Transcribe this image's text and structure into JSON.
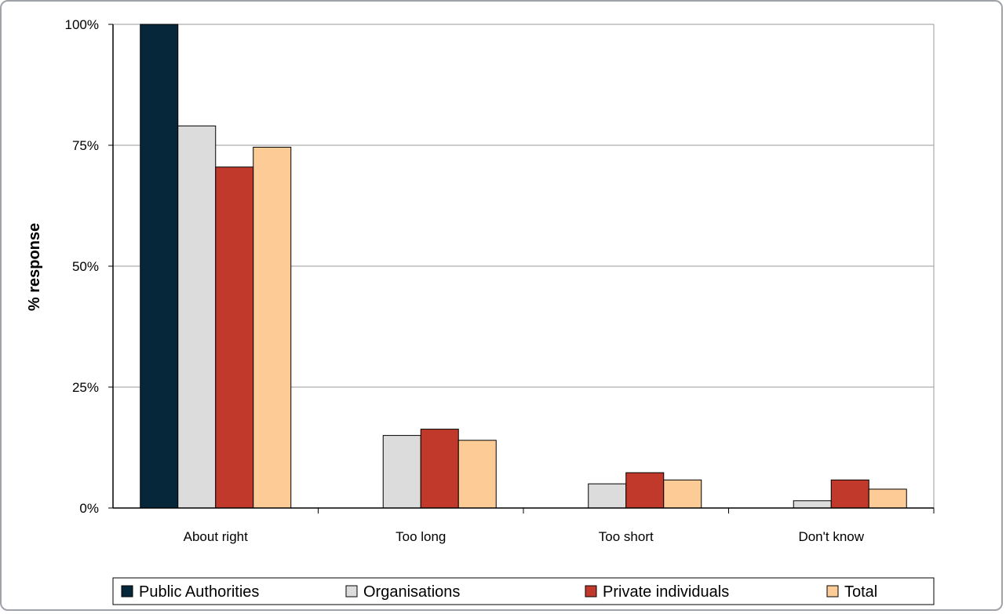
{
  "chart_data": {
    "type": "bar",
    "ylabel": "% response",
    "xlabel": "",
    "ylim": [
      0,
      100
    ],
    "yticks": [
      "0%",
      "25%",
      "50%",
      "75%",
      "100%"
    ],
    "ytick_values": [
      0,
      25,
      50,
      75,
      100
    ],
    "categories": [
      "About right",
      "Too long",
      "Too short",
      "Don't know"
    ],
    "series": [
      {
        "name": "Public Authorities",
        "color": "#06263a",
        "values": [
          100,
          0,
          0,
          0
        ]
      },
      {
        "name": "Organisations",
        "color": "#dcdcdc",
        "values": [
          79,
          15,
          5,
          1.5
        ]
      },
      {
        "name": "Private individuals",
        "color": "#c0392b",
        "values": [
          70.5,
          16.3,
          7.3,
          5.8
        ]
      },
      {
        "name": "Total",
        "color": "#fdcb96",
        "values": [
          74.6,
          14,
          5.8,
          3.9
        ]
      }
    ],
    "grid": true,
    "legend_position": "bottom"
  }
}
